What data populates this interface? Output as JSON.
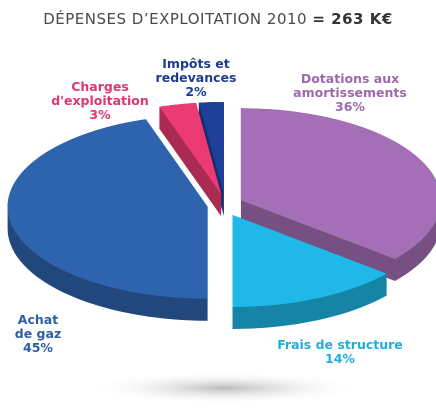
{
  "chart_data": {
    "type": "pie",
    "title": "DÉPENSES D’EXPLOITATION 2010",
    "title_total": "= 263 K€",
    "categories": [
      "Dotations aux amortissements",
      "Frais de structure",
      "Achat de gaz",
      "Charges d'exploitation",
      "Impôts et redevances"
    ],
    "values": [
      36,
      14,
      45,
      3,
      2
    ],
    "value_labels": [
      "36%",
      "14%",
      "45%",
      "3%",
      "2%"
    ],
    "colors": [
      "#a46fb6",
      "#1fb8e8",
      "#2e63ae",
      "#ec3a72",
      "#1f3f99"
    ]
  }
}
